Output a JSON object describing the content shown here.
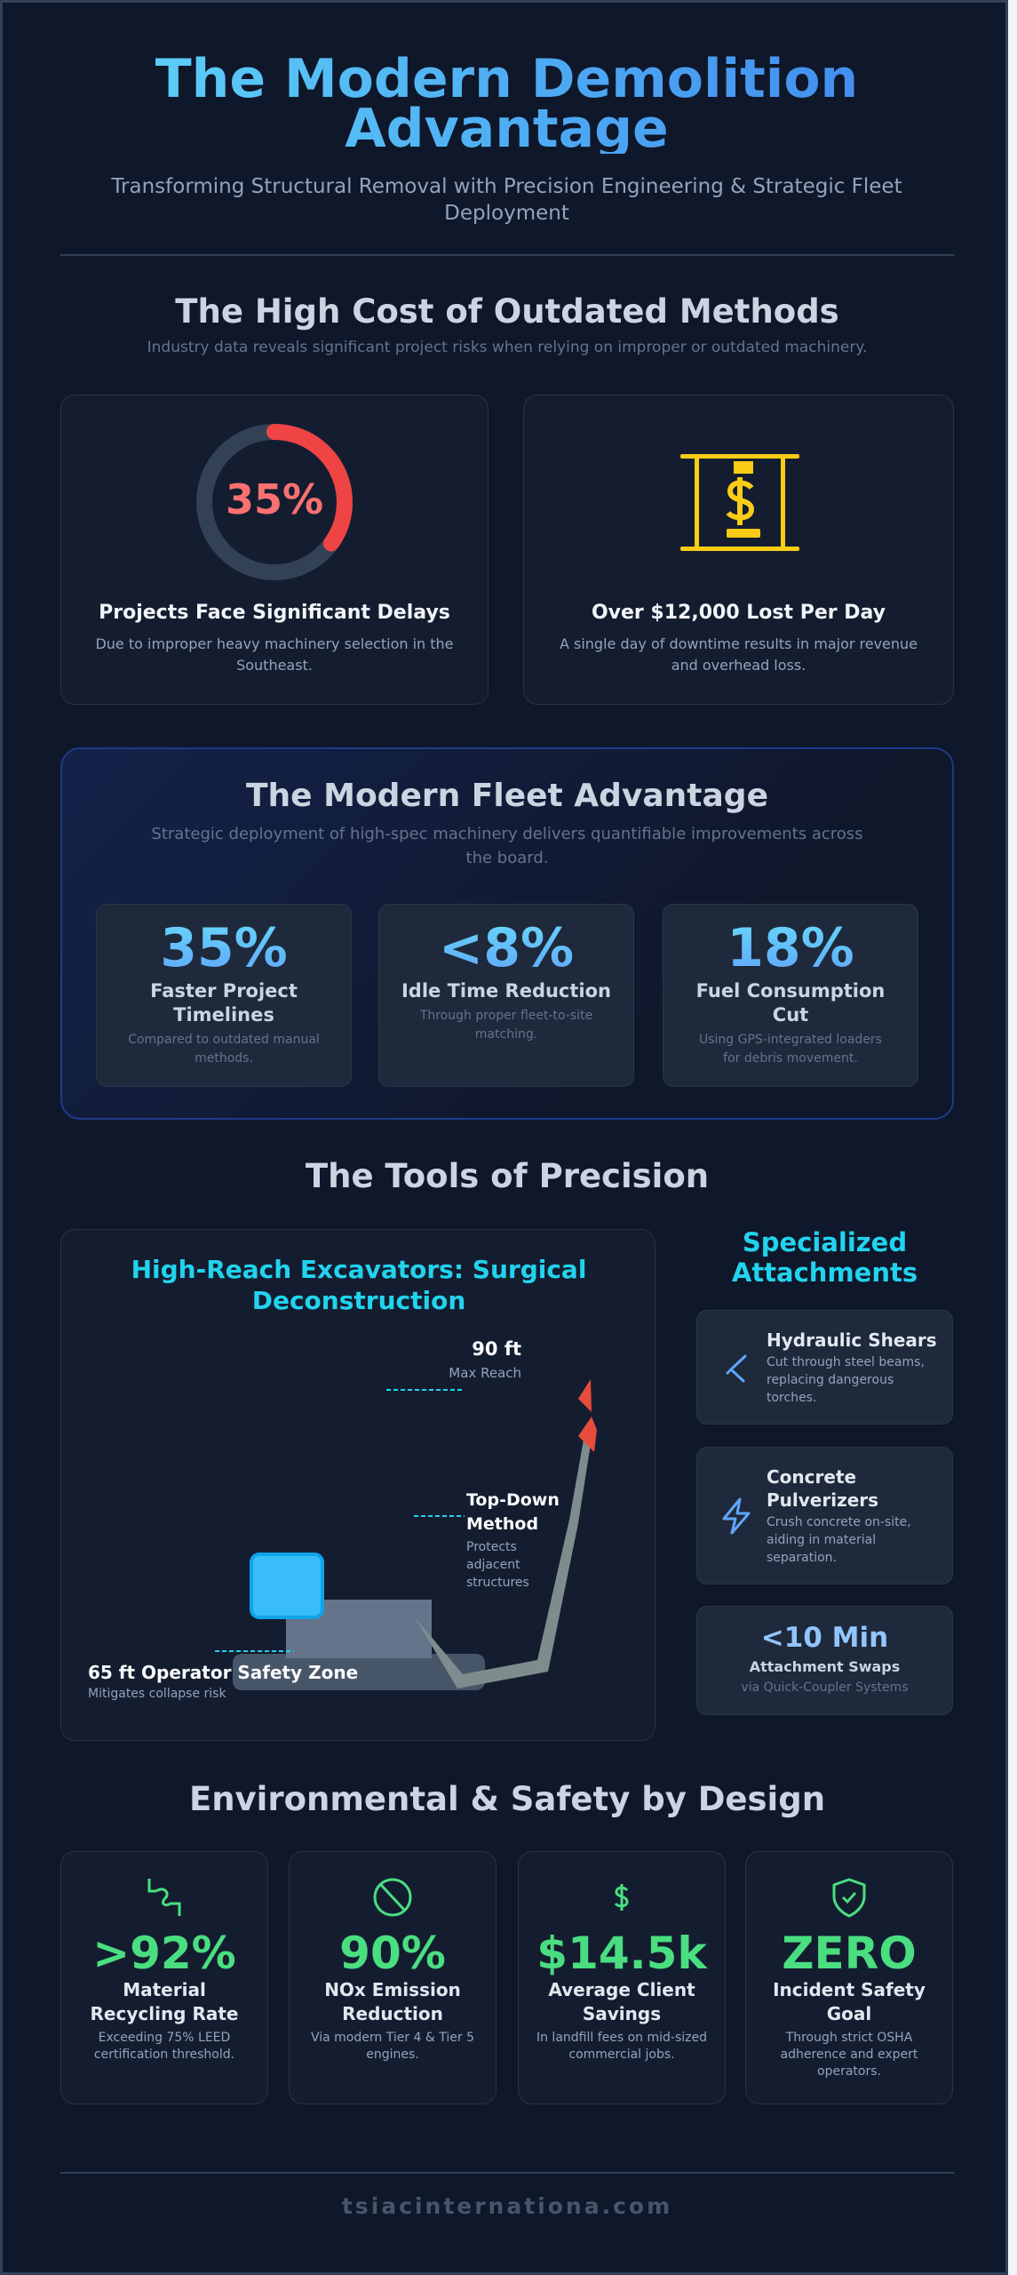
{
  "header": {
    "title": "The Modern Demolition Advantage",
    "subtitle": "Transforming Structural Removal with Precision Engineering & Strategic Fleet Deployment"
  },
  "cost": {
    "title": "The High Cost of Outdated Methods",
    "note": "Industry data reveals significant project risks when relying on improper or outdated machinery.",
    "cards": [
      {
        "value": "35%",
        "progress_percent": 35,
        "title": "Projects Face Significant Delays",
        "desc": "Due to improper heavy machinery selection in the Southeast.",
        "color": "#ef4444"
      },
      {
        "icon": "money-press-icon",
        "title": "Over $12,000 Lost Per Day",
        "desc": "A single day of downtime results in major revenue and overhead loss.",
        "color": "#facc15"
      }
    ]
  },
  "fleet": {
    "title": "The Modern Fleet Advantage",
    "note": "Strategic deployment of high-spec machinery delivers quantifiable improvements across the board.",
    "stats": [
      {
        "value": "35%",
        "label": "Faster Project Timelines",
        "desc": "Compared to outdated manual methods."
      },
      {
        "value": "<8%",
        "label": "Idle Time Reduction",
        "desc": "Through proper fleet-to-site matching."
      },
      {
        "value": "18%",
        "label": "Fuel Consumption Cut",
        "desc": "Using GPS-integrated loaders for debris movement."
      }
    ]
  },
  "tools": {
    "title": "The Tools of Precision",
    "excavator": {
      "title": "High-Reach Excavators: Surgical Deconstruction",
      "reach_value": "90 ft",
      "reach_label": "Max Reach",
      "method_title": "Top-Down Method",
      "method_desc": "Protects adjacent structures",
      "zone_title": "65 ft Operator Safety Zone",
      "zone_desc": "Mitigates collapse risk"
    },
    "attachments_title": "Specialized Attachments",
    "attachments": [
      {
        "icon": "shears-icon",
        "title": "Hydraulic Shears",
        "desc": "Cut through steel beams, replacing dangerous torches."
      },
      {
        "icon": "lightning-icon",
        "title": "Concrete Pulverizers",
        "desc": "Crush concrete on-site, aiding in material separation."
      }
    ],
    "swap": {
      "value": "<10 Min",
      "label": "Attachment Swaps",
      "desc": "via Quick-Coupler Systems"
    }
  },
  "env": {
    "title": "Environmental & Safety by Design",
    "cards": [
      {
        "icon": "recycle-icon",
        "value": ">92%",
        "label": "Material Recycling Rate",
        "desc": "Exceeding 75% LEED certification threshold."
      },
      {
        "icon": "no-emission-icon",
        "value": "90%",
        "label": "NOx Emission Reduction",
        "desc": "Via modern Tier 4 & Tier 5 engines."
      },
      {
        "icon": "dollar-icon",
        "value": "$14.5k",
        "label": "Average Client Savings",
        "desc": "In landfill fees on mid-sized commercial jobs."
      },
      {
        "icon": "shield-check-icon",
        "value": "ZERO",
        "label": "Incident Safety Goal",
        "desc": "Through strict OSHA adherence and expert operators."
      }
    ]
  },
  "footer": {
    "domain": "tsiacinternationa.com"
  },
  "colors": {
    "bg": "#0f172a",
    "accent": "#38bdf8",
    "red": "#ef4444",
    "yellow": "#facc15",
    "green": "#4ade80"
  }
}
